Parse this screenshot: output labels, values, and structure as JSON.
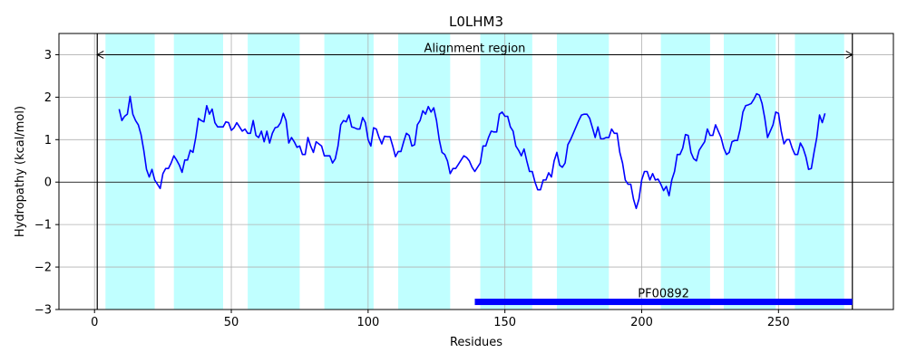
{
  "chart_data": {
    "type": "line",
    "title": "L0LHM3",
    "xlabel": "Residues",
    "ylabel": "Hydropathy (kcal/mol)",
    "xlim": [
      -13,
      292
    ],
    "ylim": [
      -3,
      3.5
    ],
    "xticks": [
      0,
      50,
      100,
      150,
      200,
      250
    ],
    "yticks": [
      -3,
      -2,
      -1,
      0,
      1,
      2,
      3
    ],
    "ytick_labels": [
      "−3",
      "−2",
      "−1",
      "0",
      "1",
      "2",
      "3"
    ],
    "grid": true,
    "series": [
      {
        "color": "#0000ff",
        "x": [
          9,
          10,
          11,
          12,
          13,
          14,
          15,
          16,
          17,
          18,
          19,
          20,
          21,
          22,
          23,
          24,
          25,
          26,
          27,
          28,
          29,
          30,
          31,
          32,
          33,
          34,
          35,
          36,
          37,
          38,
          39,
          40,
          41,
          42,
          43,
          44,
          45,
          46,
          47,
          48,
          49,
          50,
          51,
          52,
          53,
          54,
          55,
          56,
          57,
          58,
          59,
          60,
          61,
          62,
          63,
          64,
          65,
          66,
          67,
          68,
          69,
          70,
          71,
          72,
          73,
          74,
          75,
          76,
          77,
          78,
          79,
          80,
          81,
          82,
          83,
          84,
          85,
          86,
          87,
          88,
          89,
          90,
          91,
          92,
          93,
          94,
          95,
          96,
          97,
          98,
          99,
          100,
          101,
          102,
          103,
          104,
          105,
          106,
          107,
          108,
          109,
          110,
          111,
          112,
          113,
          114,
          115,
          116,
          117,
          118,
          119,
          120,
          121,
          122,
          123,
          124,
          125,
          126,
          127,
          128,
          129,
          130,
          131,
          132,
          133,
          134,
          135,
          136,
          137,
          138,
          139,
          140,
          141,
          142,
          143,
          144,
          145,
          146,
          147,
          148,
          149,
          150,
          151,
          152,
          153,
          154,
          155,
          156,
          157,
          158,
          159,
          160,
          161,
          162,
          163,
          164,
          165,
          166,
          167,
          168,
          169,
          170,
          171,
          172,
          173,
          174,
          175,
          176,
          177,
          178,
          179,
          180,
          181,
          182,
          183,
          184,
          185,
          186,
          187,
          188,
          189,
          190,
          191,
          192,
          193,
          194,
          195,
          196,
          197,
          198,
          199,
          200,
          201,
          202,
          203,
          204,
          205,
          206,
          207,
          208,
          209,
          210,
          211,
          212,
          213,
          214,
          215,
          216,
          217,
          218,
          219,
          220,
          221,
          222,
          223,
          224,
          225,
          226,
          227,
          228,
          229,
          230,
          231,
          232,
          233,
          234,
          235,
          236,
          237,
          238,
          239,
          240,
          241,
          242,
          243,
          244,
          245,
          246,
          247,
          248,
          249,
          250,
          251,
          252,
          253,
          254,
          255,
          256,
          257,
          258,
          259,
          260,
          261,
          262,
          263,
          264,
          265,
          266,
          267
        ],
        "y": [
          1.72,
          1.45,
          1.55,
          1.6,
          2.02,
          1.6,
          1.45,
          1.35,
          1.12,
          0.75,
          0.3,
          0.12,
          0.3,
          0.05,
          -0.05,
          -0.15,
          0.2,
          0.32,
          0.32,
          0.45,
          0.62,
          0.52,
          0.4,
          0.23,
          0.52,
          0.52,
          0.75,
          0.7,
          1.05,
          1.5,
          1.45,
          1.42,
          1.8,
          1.6,
          1.72,
          1.4,
          1.3,
          1.3,
          1.3,
          1.42,
          1.4,
          1.22,
          1.28,
          1.4,
          1.3,
          1.2,
          1.25,
          1.15,
          1.15,
          1.45,
          1.1,
          1.05,
          1.2,
          0.95,
          1.2,
          0.92,
          1.15,
          1.28,
          1.3,
          1.4,
          1.62,
          1.45,
          0.92,
          1.05,
          0.95,
          0.82,
          0.85,
          0.65,
          0.65,
          1.05,
          0.85,
          0.7,
          0.95,
          0.9,
          0.85,
          0.62,
          0.62,
          0.62,
          0.45,
          0.55,
          0.85,
          1.35,
          1.45,
          1.42,
          1.58,
          1.3,
          1.28,
          1.25,
          1.25,
          1.52,
          1.4,
          1.0,
          0.85,
          1.28,
          1.25,
          1.05,
          0.9,
          1.08,
          1.07,
          1.07,
          0.85,
          0.6,
          0.72,
          0.72,
          0.95,
          1.15,
          1.1,
          0.85,
          0.88,
          1.35,
          1.45,
          1.68,
          1.6,
          1.78,
          1.65,
          1.75,
          1.45,
          1.0,
          0.7,
          0.65,
          0.5,
          0.2,
          0.32,
          0.32,
          0.42,
          0.52,
          0.62,
          0.58,
          0.5,
          0.35,
          0.25,
          0.35,
          0.45,
          0.85,
          0.85,
          1.05,
          1.2,
          1.18,
          1.18,
          1.6,
          1.65,
          1.55,
          1.55,
          1.3,
          1.2,
          0.85,
          0.75,
          0.62,
          0.78,
          0.5,
          0.25,
          0.25,
          0.0,
          -0.18,
          -0.18,
          0.05,
          0.05,
          0.22,
          0.12,
          0.5,
          0.7,
          0.4,
          0.35,
          0.45,
          0.88,
          1.0,
          1.15,
          1.3,
          1.45,
          1.58,
          1.6,
          1.6,
          1.5,
          1.28,
          1.05,
          1.3,
          1.02,
          1.02,
          1.05,
          1.05,
          1.25,
          1.15,
          1.15,
          0.7,
          0.45,
          0.05,
          -0.05,
          -0.05,
          -0.4,
          -0.62,
          -0.4,
          0.05,
          0.25,
          0.25,
          0.05,
          0.2,
          0.05,
          0.07,
          -0.05,
          -0.2,
          -0.1,
          -0.32,
          0.05,
          0.25,
          0.65,
          0.65,
          0.8,
          1.12,
          1.1,
          0.7,
          0.55,
          0.5,
          0.75,
          0.85,
          0.95,
          1.25,
          1.1,
          1.1,
          1.35,
          1.2,
          1.05,
          0.8,
          0.65,
          0.7,
          0.95,
          0.98,
          0.98,
          1.25,
          1.65,
          1.8,
          1.82,
          1.85,
          1.95,
          2.08,
          2.05,
          1.85,
          1.5,
          1.05,
          1.2,
          1.35,
          1.65,
          1.62,
          1.2,
          0.9,
          1.0,
          1.0,
          0.8,
          0.65,
          0.65,
          0.92,
          0.8,
          0.6,
          0.3,
          0.32,
          0.7,
          1.05,
          1.58,
          1.4,
          1.62
        ]
      }
    ],
    "shaded_regions": [
      [
        4,
        22
      ],
      [
        29,
        47
      ],
      [
        56,
        75
      ],
      [
        84,
        102
      ],
      [
        111,
        130
      ],
      [
        141,
        160
      ],
      [
        169,
        188
      ],
      [
        207,
        225
      ],
      [
        230,
        249
      ],
      [
        256,
        274
      ]
    ],
    "shade_color": "#c0ffff",
    "vlines": [
      1,
      277
    ],
    "alignment_region": {
      "label": "Alignment region",
      "x_start": 1,
      "x_end": 277,
      "y": 3
    },
    "domain_bar": {
      "label": "PF00892",
      "x_start": 139,
      "x_end": 277,
      "y": -2.82,
      "color": "#0000ff"
    }
  }
}
